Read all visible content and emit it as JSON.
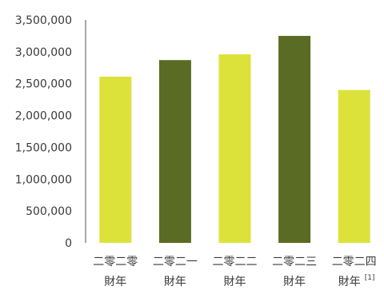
{
  "chart_data": {
    "type": "bar",
    "categories": [
      {
        "line1": "二零二零",
        "line2": "財年",
        "note": ""
      },
      {
        "line1": "二零二一",
        "line2": "財年",
        "note": ""
      },
      {
        "line1": "二零二二",
        "line2": "財年",
        "note": ""
      },
      {
        "line1": "二零二三",
        "line2": "財年",
        "note": ""
      },
      {
        "line1": "二零二四",
        "line2": "財年",
        "note": "[1]"
      }
    ],
    "values": [
      2610000,
      2870000,
      2960000,
      3250000,
      2400000
    ],
    "bar_colors": [
      "#dde23b",
      "#5a6b23",
      "#dde23b",
      "#5a6b23",
      "#dde23b"
    ],
    "ylim": [
      0,
      3500000
    ],
    "yticks": [
      0,
      500000,
      1000000,
      1500000,
      2000000,
      2500000,
      3000000,
      3500000
    ],
    "ytick_labels": [
      "0",
      "500,000",
      "1,000,000",
      "1,500,000",
      "2,000,000",
      "2,500,000",
      "3,000,000",
      "3,500,000"
    ],
    "grid": false,
    "title": "",
    "xlabel": "",
    "ylabel": ""
  }
}
